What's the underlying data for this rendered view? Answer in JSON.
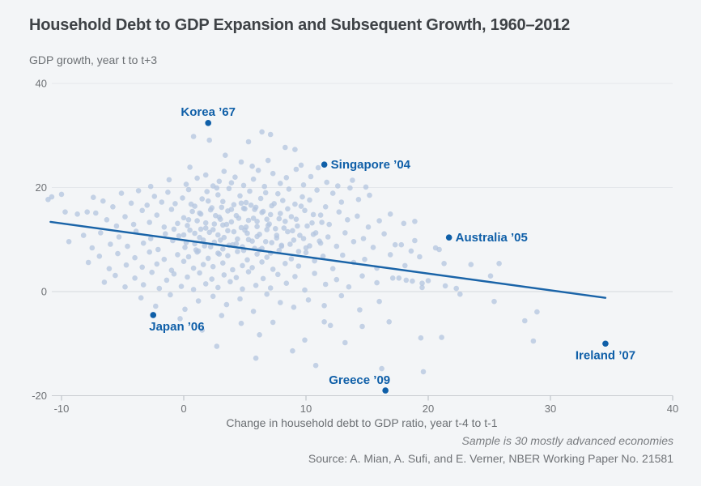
{
  "header": {
    "title": "Household Debt to GDP Expansion and Subsequent Growth, 1960–2012"
  },
  "footer": {
    "note": "Sample is 30 mostly advanced economies",
    "source": "Source: A. Mian, A. Sufi, and E. Verner, NBER Working Paper No. 21581"
  },
  "chart_data": {
    "type": "scatter",
    "title": "Household Debt to GDP Expansion and Subsequent Growth, 1960–2012",
    "xlabel": "Change in household debt to GDP ratio, year t-4 to t-1",
    "ylabel": "GDP growth, year t to t+3",
    "xlim": [
      -13,
      40
    ],
    "ylim": [
      -20,
      40
    ],
    "x_ticks": [
      -10,
      0,
      10,
      20,
      30,
      40
    ],
    "y_ticks": [
      40,
      20,
      0,
      -20
    ],
    "grid": "horizontal",
    "legend": "none",
    "colors": {
      "accent": "#0f5fa8",
      "trend": "#1a64a8",
      "point": "#b3c4df",
      "grid": "#e4e7eb",
      "zero_grid": "#d5d9dd",
      "axis_line": "#c9cdd2",
      "tick_mark": "#b6bac0",
      "tick_text": "#6f7276"
    },
    "trend_line": {
      "x1": -10.9,
      "y1": 13.4,
      "x2": 34.5,
      "y2": -1.2
    },
    "annotations": [
      {
        "label": "Korea ’67",
        "x": 2.0,
        "y": 32.4,
        "placement": "above"
      },
      {
        "label": "Singapore ’04",
        "x": 11.5,
        "y": 24.4,
        "placement": "right"
      },
      {
        "label": "Australia ’05",
        "x": 21.7,
        "y": 10.4,
        "placement": "right"
      },
      {
        "label": "Japan ’06",
        "x": -2.5,
        "y": -4.5,
        "placement": "below-start"
      },
      {
        "label": "Ireland ’07",
        "x": 34.5,
        "y": -10.0,
        "placement": "below"
      },
      {
        "label": "Greece ’09",
        "x": 16.5,
        "y": -19.0,
        "placement": "above-end"
      }
    ],
    "points": [
      [
        0.8,
        29.8
      ],
      [
        2.1,
        29.1
      ],
      [
        3.4,
        26.2
      ],
      [
        4.7,
        24.9
      ],
      [
        5.3,
        28.8
      ],
      [
        5.6,
        24.1
      ],
      [
        6.4,
        30.7
      ],
      [
        6.9,
        25.2
      ],
      [
        7.1,
        30.2
      ],
      [
        8.3,
        27.7
      ],
      [
        9.1,
        27.3
      ],
      [
        11.0,
        23.8
      ],
      [
        -2.7,
        20.2
      ],
      [
        -1.2,
        21.5
      ],
      [
        0.2,
        20.6
      ],
      [
        0.5,
        23.9
      ],
      [
        1.1,
        21.8
      ],
      [
        1.8,
        22.4
      ],
      [
        2.4,
        20.3
      ],
      [
        2.9,
        21.2
      ],
      [
        3.3,
        23.1
      ],
      [
        3.9,
        20.9
      ],
      [
        4.2,
        22.0
      ],
      [
        4.9,
        20.4
      ],
      [
        5.7,
        21.6
      ],
      [
        6.1,
        23.3
      ],
      [
        6.6,
        20.2
      ],
      [
        7.3,
        22.7
      ],
      [
        7.9,
        20.8
      ],
      [
        8.4,
        21.9
      ],
      [
        9.2,
        23.5
      ],
      [
        9.6,
        24.3
      ],
      [
        9.8,
        20.5
      ],
      [
        10.4,
        22.1
      ],
      [
        11.7,
        21.0
      ],
      [
        12.6,
        20.3
      ],
      [
        13.8,
        21.4
      ],
      [
        14.9,
        20.1
      ],
      [
        -11.1,
        17.7
      ],
      [
        -10.8,
        18.2
      ],
      [
        -10.0,
        18.7
      ],
      [
        -7.4,
        18.1
      ],
      [
        -6.6,
        17.4
      ],
      [
        -5.8,
        16.3
      ],
      [
        -5.1,
        18.9
      ],
      [
        -4.3,
        17.0
      ],
      [
        -3.7,
        19.4
      ],
      [
        -3.0,
        16.6
      ],
      [
        -2.4,
        18.3
      ],
      [
        -1.8,
        17.2
      ],
      [
        -1.3,
        19.1
      ],
      [
        -0.7,
        16.9
      ],
      [
        -0.1,
        18.0
      ],
      [
        0.4,
        19.6
      ],
      [
        0.9,
        16.4
      ],
      [
        1.5,
        17.8
      ],
      [
        1.9,
        19.2
      ],
      [
        2.3,
        16.1
      ],
      [
        2.7,
        19.9
      ],
      [
        2.8,
        18.6
      ],
      [
        3.2,
        17.3
      ],
      [
        3.7,
        19.8
      ],
      [
        4.1,
        16.7
      ],
      [
        4.6,
        18.4
      ],
      [
        4.9,
        16.0
      ],
      [
        5.1,
        17.1
      ],
      [
        5.4,
        19.3
      ],
      [
        5.9,
        16.2
      ],
      [
        6.3,
        17.9
      ],
      [
        6.7,
        19.0
      ],
      [
        7.2,
        16.5
      ],
      [
        7.7,
        18.8
      ],
      [
        8.1,
        17.5
      ],
      [
        8.6,
        19.7
      ],
      [
        9.1,
        16.8
      ],
      [
        9.7,
        18.2
      ],
      [
        10.3,
        17.6
      ],
      [
        10.9,
        19.5
      ],
      [
        11.6,
        16.3
      ],
      [
        12.2,
        18.9
      ],
      [
        12.9,
        17.2
      ],
      [
        13.6,
        19.9
      ],
      [
        14.3,
        17.7
      ],
      [
        15.2,
        18.5
      ],
      [
        -9.7,
        15.3
      ],
      [
        -8.7,
        14.9
      ],
      [
        -7.9,
        15.3
      ],
      [
        -7.2,
        15.1
      ],
      [
        -6.3,
        13.8
      ],
      [
        -5.5,
        12.6
      ],
      [
        -4.8,
        14.4
      ],
      [
        -4.1,
        12.9
      ],
      [
        -3.4,
        15.6
      ],
      [
        -2.8,
        13.3
      ],
      [
        -2.2,
        14.7
      ],
      [
        -1.6,
        12.4
      ],
      [
        -1.0,
        15.8
      ],
      [
        -0.8,
        12.0
      ],
      [
        -0.5,
        13.1
      ],
      [
        0.0,
        14.2
      ],
      [
        0.3,
        12.7
      ],
      [
        0.7,
        15.4
      ],
      [
        1.1,
        13.6
      ],
      [
        1.4,
        14.9
      ],
      [
        1.8,
        12.2
      ],
      [
        2.2,
        15.7
      ],
      [
        2.5,
        13.0
      ],
      [
        2.9,
        14.3
      ],
      [
        3.2,
        12.8
      ],
      [
        3.6,
        15.5
      ],
      [
        3.9,
        13.4
      ],
      [
        4.3,
        14.6
      ],
      [
        4.7,
        12.3
      ],
      [
        5.0,
        15.9
      ],
      [
        5.3,
        13.7
      ],
      [
        5.7,
        14.1
      ],
      [
        5.8,
        15.8
      ],
      [
        6.0,
        12.5
      ],
      [
        6.4,
        15.2
      ],
      [
        6.8,
        13.9
      ],
      [
        7.1,
        14.8
      ],
      [
        7.5,
        12.1
      ],
      [
        7.9,
        15.0
      ],
      [
        8.3,
        13.5
      ],
      [
        8.8,
        14.4
      ],
      [
        9.3,
        12.6
      ],
      [
        9.9,
        15.6
      ],
      [
        10.5,
        13.2
      ],
      [
        11.2,
        14.7
      ],
      [
        11.9,
        12.9
      ],
      [
        12.7,
        15.3
      ],
      [
        13.4,
        13.8
      ],
      [
        14.2,
        14.5
      ],
      [
        15.1,
        12.4
      ],
      [
        16.0,
        13.6
      ],
      [
        16.9,
        14.9
      ],
      [
        18.0,
        13.1
      ],
      [
        18.9,
        13.5
      ],
      [
        -9.4,
        9.6
      ],
      [
        -8.2,
        10.8
      ],
      [
        -7.5,
        8.4
      ],
      [
        -6.8,
        11.3
      ],
      [
        -6.0,
        9.1
      ],
      [
        -5.3,
        10.5
      ],
      [
        -4.6,
        8.7
      ],
      [
        -3.9,
        11.6
      ],
      [
        -3.3,
        9.3
      ],
      [
        -2.7,
        10.2
      ],
      [
        -2.1,
        8.1
      ],
      [
        -1.5,
        11.1
      ],
      [
        -0.9,
        9.8
      ],
      [
        -0.4,
        10.7
      ],
      [
        0.1,
        8.5
      ],
      [
        0.5,
        11.8
      ],
      [
        0.9,
        9.2
      ],
      [
        1.0,
        8.0
      ],
      [
        1.3,
        10.4
      ],
      [
        1.7,
        8.8
      ],
      [
        2.1,
        11.4
      ],
      [
        2.5,
        9.5
      ],
      [
        2.8,
        10.9
      ],
      [
        3.0,
        9.9
      ],
      [
        3.2,
        8.2
      ],
      [
        3.6,
        11.7
      ],
      [
        4.0,
        9.0
      ],
      [
        4.4,
        10.1
      ],
      [
        4.8,
        8.6
      ],
      [
        5.2,
        11.2
      ],
      [
        5.6,
        9.7
      ],
      [
        6.0,
        10.6
      ],
      [
        6.2,
        8.0
      ],
      [
        6.4,
        8.3
      ],
      [
        6.8,
        11.9
      ],
      [
        7.2,
        9.4
      ],
      [
        7.6,
        10.3
      ],
      [
        8.0,
        8.9
      ],
      [
        8.5,
        11.5
      ],
      [
        9.0,
        9.9
      ],
      [
        9.5,
        10.8
      ],
      [
        10.0,
        8.4
      ],
      [
        10.6,
        11.0
      ],
      [
        11.2,
        9.3
      ],
      [
        11.8,
        10.5
      ],
      [
        12.5,
        8.7
      ],
      [
        13.2,
        11.3
      ],
      [
        13.9,
        9.6
      ],
      [
        14.7,
        10.2
      ],
      [
        15.5,
        8.5
      ],
      [
        16.4,
        11.1
      ],
      [
        17.3,
        9.0
      ],
      [
        17.8,
        9.0
      ],
      [
        18.6,
        7.8
      ],
      [
        18.9,
        9.8
      ],
      [
        20.9,
        8.1
      ],
      [
        -7.8,
        5.6
      ],
      [
        -6.9,
        6.8
      ],
      [
        -6.1,
        4.4
      ],
      [
        -5.4,
        7.3
      ],
      [
        -4.7,
        5.1
      ],
      [
        -4.0,
        6.5
      ],
      [
        -3.4,
        4.7
      ],
      [
        -2.8,
        7.6
      ],
      [
        -2.2,
        5.3
      ],
      [
        -1.6,
        6.2
      ],
      [
        -1.0,
        4.1
      ],
      [
        -0.5,
        7.1
      ],
      [
        0.0,
        5.8
      ],
      [
        0.4,
        6.7
      ],
      [
        0.8,
        4.5
      ],
      [
        1.2,
        7.8
      ],
      [
        1.6,
        5.2
      ],
      [
        2.0,
        6.4
      ],
      [
        2.4,
        4.8
      ],
      [
        2.8,
        7.4
      ],
      [
        3.2,
        5.5
      ],
      [
        3.6,
        6.9
      ],
      [
        4.0,
        4.2
      ],
      [
        4.4,
        7.7
      ],
      [
        4.8,
        5.0
      ],
      [
        5.2,
        6.1
      ],
      [
        5.6,
        4.6
      ],
      [
        6.0,
        7.2
      ],
      [
        6.4,
        5.7
      ],
      [
        6.8,
        6.6
      ],
      [
        7.3,
        4.3
      ],
      [
        7.8,
        7.9
      ],
      [
        8.3,
        5.4
      ],
      [
        8.8,
        6.3
      ],
      [
        9.4,
        4.9
      ],
      [
        10.0,
        7.5
      ],
      [
        10.7,
        5.9
      ],
      [
        11.4,
        6.8
      ],
      [
        12.2,
        4.4
      ],
      [
        13.0,
        7.0
      ],
      [
        13.9,
        5.6
      ],
      [
        14.8,
        6.2
      ],
      [
        15.8,
        4.5
      ],
      [
        16.9,
        7.1
      ],
      [
        18.1,
        5.0
      ],
      [
        19.3,
        6.7
      ],
      [
        20.6,
        8.4
      ],
      [
        21.3,
        5.4
      ],
      [
        23.5,
        5.2
      ],
      [
        25.8,
        5.4
      ],
      [
        -6.5,
        1.8
      ],
      [
        -5.6,
        3.1
      ],
      [
        -4.8,
        0.9
      ],
      [
        -4.0,
        2.6
      ],
      [
        -3.3,
        1.3
      ],
      [
        -2.6,
        3.7
      ],
      [
        -2.0,
        0.6
      ],
      [
        -1.4,
        2.2
      ],
      [
        -0.8,
        3.4
      ],
      [
        -0.2,
        1.0
      ],
      [
        0.3,
        2.8
      ],
      [
        0.8,
        0.4
      ],
      [
        1.3,
        3.6
      ],
      [
        1.8,
        1.5
      ],
      [
        2.3,
        2.4
      ],
      [
        2.8,
        0.8
      ],
      [
        3.3,
        3.2
      ],
      [
        3.8,
        1.9
      ],
      [
        4.3,
        2.7
      ],
      [
        4.8,
        0.5
      ],
      [
        5.3,
        3.8
      ],
      [
        5.9,
        1.2
      ],
      [
        6.5,
        2.5
      ],
      [
        7.1,
        0.7
      ],
      [
        7.7,
        3.3
      ],
      [
        8.4,
        1.6
      ],
      [
        9.1,
        2.9
      ],
      [
        9.9,
        0.3
      ],
      [
        10.7,
        3.5
      ],
      [
        11.6,
        1.4
      ],
      [
        12.5,
        2.3
      ],
      [
        13.5,
        0.9
      ],
      [
        14.6,
        3.0
      ],
      [
        15.8,
        1.7
      ],
      [
        17.1,
        2.6
      ],
      [
        17.6,
        2.6
      ],
      [
        18.2,
        2.2
      ],
      [
        18.7,
        2.0
      ],
      [
        19.5,
        1.6
      ],
      [
        19.5,
        0.8
      ],
      [
        20.0,
        2.1
      ],
      [
        21.4,
        1.1
      ],
      [
        22.3,
        0.6
      ],
      [
        25.1,
        3.0
      ],
      [
        -3.5,
        -1.2
      ],
      [
        -2.3,
        -2.8
      ],
      [
        -1.1,
        -0.6
      ],
      [
        0.1,
        -3.4
      ],
      [
        1.2,
        -1.8
      ],
      [
        2.4,
        -0.9
      ],
      [
        3.5,
        -2.5
      ],
      [
        4.6,
        -1.4
      ],
      [
        5.7,
        -3.8
      ],
      [
        6.8,
        -0.5
      ],
      [
        7.9,
        -2.1
      ],
      [
        9.0,
        -3.0
      ],
      [
        10.2,
        -1.6
      ],
      [
        11.5,
        -2.7
      ],
      [
        12.9,
        -0.8
      ],
      [
        14.4,
        -3.5
      ],
      [
        16.0,
        -1.9
      ],
      [
        22.6,
        -0.5
      ],
      [
        25.4,
        -1.9
      ],
      [
        28.9,
        -3.9
      ],
      [
        -0.3,
        -5.2
      ],
      [
        1.5,
        -7.4
      ],
      [
        3.1,
        -4.6
      ],
      [
        4.7,
        -6.1
      ],
      [
        6.2,
        -8.3
      ],
      [
        7.3,
        -5.9
      ],
      [
        9.9,
        -9.3
      ],
      [
        11.5,
        -5.8
      ],
      [
        12.0,
        -6.5
      ],
      [
        14.6,
        -6.7
      ],
      [
        16.8,
        -5.8
      ],
      [
        19.4,
        -8.9
      ],
      [
        21.1,
        -8.8
      ],
      [
        27.9,
        -5.6
      ],
      [
        2.7,
        -10.5
      ],
      [
        5.9,
        -12.8
      ],
      [
        8.9,
        -11.4
      ],
      [
        10.8,
        -14.2
      ],
      [
        13.2,
        -9.8
      ],
      [
        16.2,
        -14.8
      ],
      [
        19.6,
        -15.4
      ],
      [
        28.6,
        -9.5
      ],
      [
        0.2,
        9.4
      ],
      [
        0.4,
        13.8
      ],
      [
        0.6,
        16.8
      ],
      [
        0.9,
        11.2
      ],
      [
        1.1,
        7.6
      ],
      [
        1.3,
        15.1
      ],
      [
        1.6,
        9.9
      ],
      [
        1.8,
        13.2
      ],
      [
        2.0,
        17.4
      ],
      [
        2.2,
        8.6
      ],
      [
        2.4,
        11.9
      ],
      [
        2.6,
        14.6
      ],
      [
        2.9,
        7.2
      ],
      [
        3.1,
        16.2
      ],
      [
        3.3,
        10.4
      ],
      [
        3.5,
        12.9
      ],
      [
        3.7,
        8.9
      ],
      [
        3.9,
        15.8
      ],
      [
        4.1,
        11.5
      ],
      [
        4.3,
        9.2
      ],
      [
        4.5,
        14.1
      ],
      [
        4.7,
        17.0
      ],
      [
        4.9,
        7.9
      ],
      [
        5.1,
        12.4
      ],
      [
        5.3,
        10.0
      ],
      [
        5.5,
        16.6
      ],
      [
        5.8,
        8.3
      ],
      [
        6.0,
        13.5
      ],
      [
        6.2,
        11.0
      ],
      [
        6.5,
        15.4
      ],
      [
        6.7,
        9.6
      ],
      [
        6.9,
        12.7
      ],
      [
        7.1,
        7.4
      ],
      [
        7.4,
        16.9
      ],
      [
        7.6,
        10.8
      ],
      [
        7.8,
        14.0
      ],
      [
        8.0,
        8.7
      ],
      [
        8.2,
        12.2
      ],
      [
        8.5,
        15.9
      ],
      [
        8.7,
        9.1
      ],
      [
        8.9,
        11.7
      ],
      [
        9.2,
        13.9
      ],
      [
        9.4,
        7.7
      ],
      [
        9.6,
        16.4
      ],
      [
        9.8,
        10.2
      ],
      [
        10.1,
        12.6
      ],
      [
        10.3,
        8.8
      ],
      [
        10.6,
        14.8
      ],
      [
        10.8,
        11.3
      ],
      [
        11.1,
        9.7
      ],
      [
        11.3,
        13.3
      ],
      [
        0.0,
        10.9
      ],
      [
        1.4,
        12.0
      ],
      [
        3.0,
        13.9
      ],
      [
        5.0,
        11.8
      ],
      [
        7.0,
        13.0
      ]
    ]
  }
}
